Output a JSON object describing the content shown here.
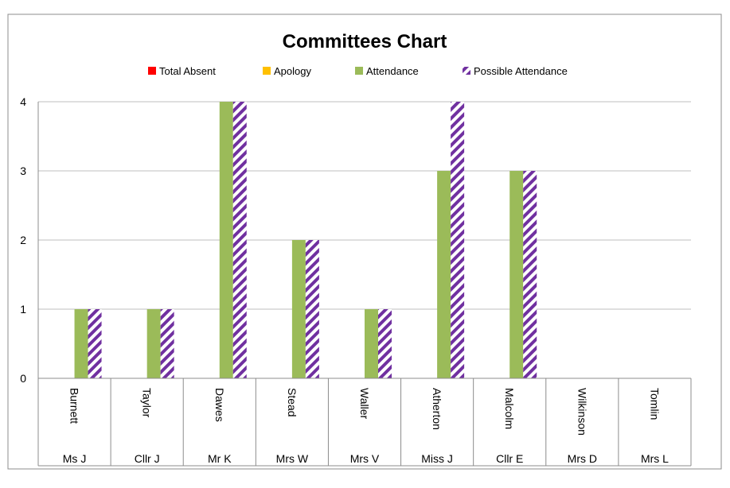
{
  "chart_data": {
    "type": "bar",
    "title": "Committees Chart",
    "legend_position": "top",
    "grid": true,
    "ylim": [
      0,
      4
    ],
    "yticks": [
      0,
      1,
      2,
      3,
      4
    ],
    "categories": [
      {
        "surname": "Burnett",
        "title": "Ms J"
      },
      {
        "surname": "Taylor",
        "title": "Cllr J"
      },
      {
        "surname": "Dawes",
        "title": "Mr K"
      },
      {
        "surname": "Stead",
        "title": "Mrs W"
      },
      {
        "surname": "Waller",
        "title": "Mrs V"
      },
      {
        "surname": "Atherton",
        "title": "Miss J"
      },
      {
        "surname": "Malcolm",
        "title": "Cllr E"
      },
      {
        "surname": "Wilkinson",
        "title": "Mrs D"
      },
      {
        "surname": "Tomlin",
        "title": "Mrs L"
      }
    ],
    "series": [
      {
        "name": "Total Absent",
        "color": "#ff0000",
        "pattern": "solid",
        "values": [
          0,
          0,
          0,
          0,
          0,
          0,
          0,
          0,
          0
        ]
      },
      {
        "name": "Apology",
        "color": "#ffc000",
        "pattern": "solid",
        "values": [
          0,
          0,
          0,
          0,
          0,
          0,
          0,
          0,
          0
        ]
      },
      {
        "name": "Attendance",
        "color": "#9bbb59",
        "pattern": "solid",
        "values": [
          1,
          1,
          4,
          2,
          1,
          3,
          3,
          0,
          0
        ]
      },
      {
        "name": "Possible Attendance",
        "color": "#7030a0",
        "pattern": "diagonal-stripes",
        "values": [
          1,
          1,
          4,
          2,
          1,
          4,
          3,
          0,
          0
        ]
      }
    ]
  }
}
